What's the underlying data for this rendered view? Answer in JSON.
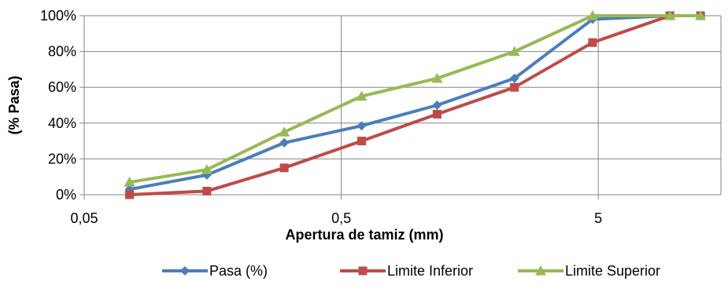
{
  "chart_data": {
    "type": "line",
    "xscale": "log",
    "xlabel": "Apertura de tamiz (mm)",
    "ylabel": "(% Pasa)",
    "xlim": [
      0.05,
      15
    ],
    "ylim": [
      0,
      100
    ],
    "grid": true,
    "legend_position": "bottom",
    "x_ticks": [
      {
        "value": 0.05,
        "label": "0,05"
      },
      {
        "value": 0.5,
        "label": "0,5"
      },
      {
        "value": 5,
        "label": "5"
      }
    ],
    "y_ticks": [
      {
        "value": 0,
        "label": "0%"
      },
      {
        "value": 20,
        "label": "20%"
      },
      {
        "value": 40,
        "label": "40%"
      },
      {
        "value": 60,
        "label": "60%"
      },
      {
        "value": 80,
        "label": "80%"
      },
      {
        "value": 100,
        "label": "100%"
      }
    ],
    "series": [
      {
        "name": "Pasa (%)",
        "color": "#4a7ebb",
        "marker": "diamond",
        "x": [
          0.075,
          0.15,
          0.3,
          0.6,
          1.18,
          2.36,
          4.75,
          9.5,
          12.5
        ],
        "y": [
          3,
          11,
          29,
          38.5,
          50,
          65,
          98,
          100,
          100
        ]
      },
      {
        "name": "Limite Inferior",
        "color": "#be4b48",
        "marker": "square",
        "x": [
          0.075,
          0.15,
          0.3,
          0.6,
          1.18,
          2.36,
          4.75,
          9.5,
          12.5
        ],
        "y": [
          0,
          2,
          15,
          30,
          45,
          60,
          85,
          100,
          100
        ]
      },
      {
        "name": "Limite Superior",
        "color": "#98b954",
        "marker": "triangle",
        "x": [
          0.075,
          0.15,
          0.3,
          0.6,
          1.18,
          2.36,
          4.75,
          9.5,
          12.5
        ],
        "y": [
          7,
          14,
          35,
          55,
          65,
          80,
          100,
          100,
          100
        ]
      }
    ]
  }
}
